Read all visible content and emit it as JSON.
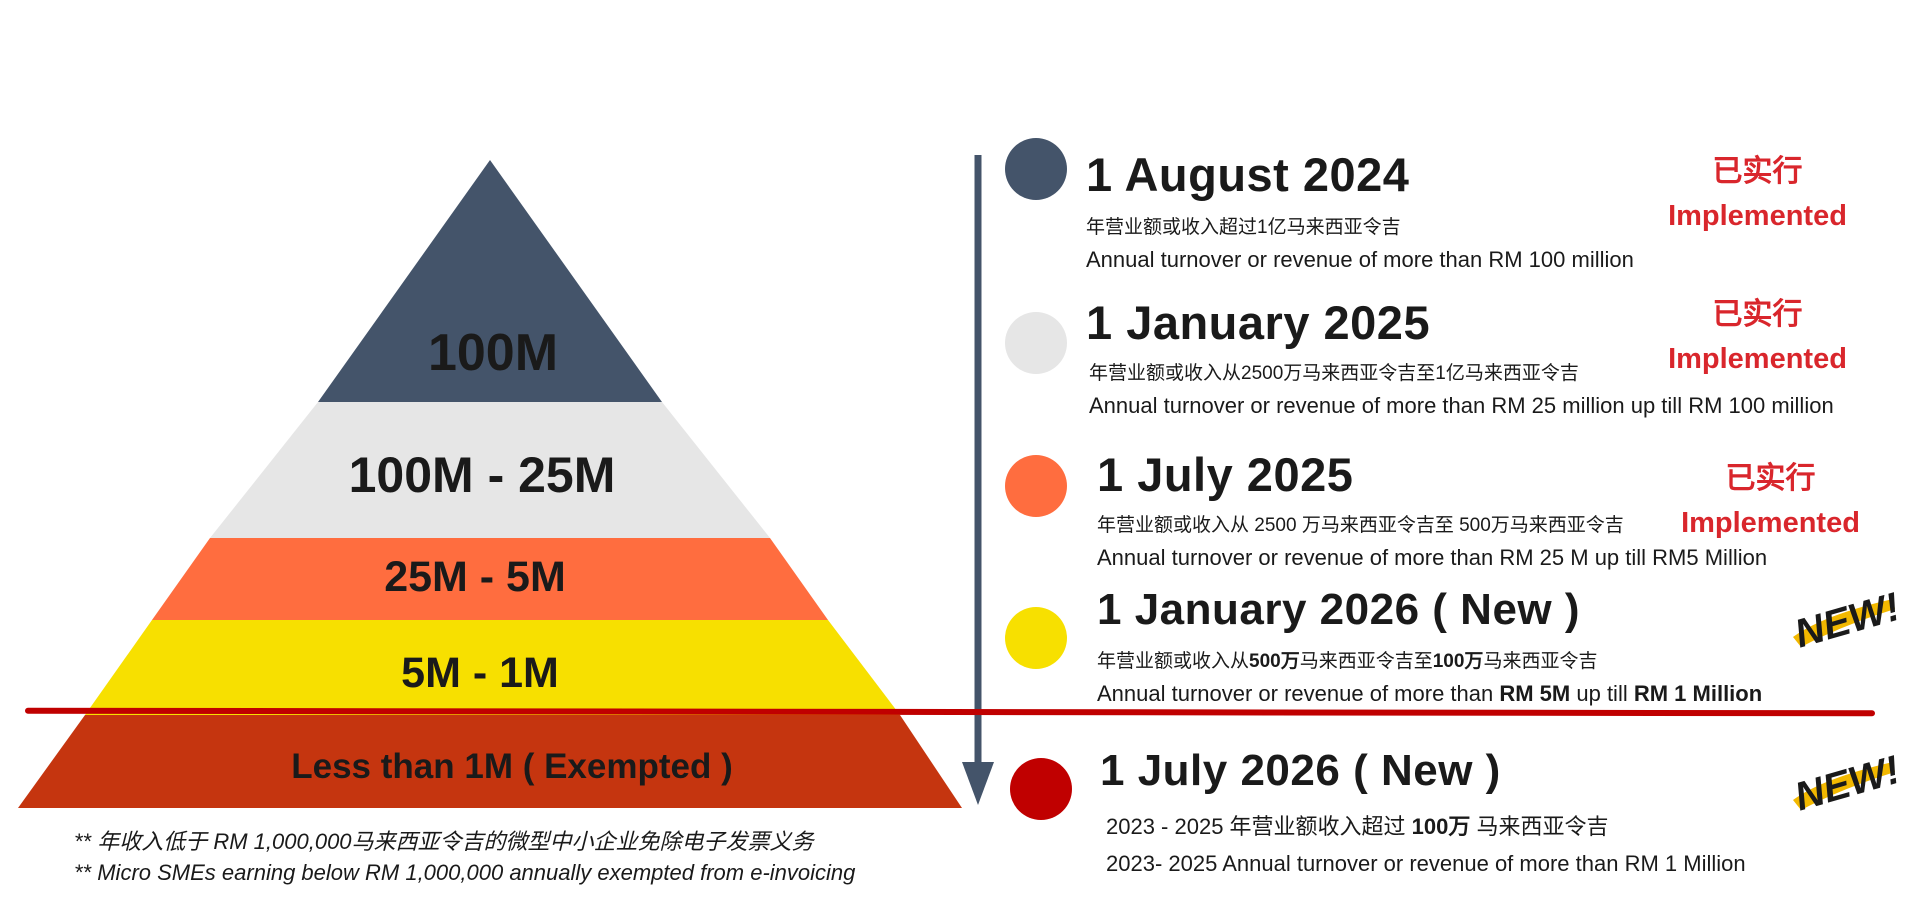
{
  "pyramid": {
    "tiers": [
      {
        "label": "100M",
        "color": "#44546a"
      },
      {
        "label": "100M - 25M",
        "color": "#e6e6e6"
      },
      {
        "label": "25M - 5M",
        "color": "#ff6d3f"
      },
      {
        "label": "5M - 1M",
        "color": "#f7e000"
      },
      {
        "label": "Less than 1M ( Exempted )",
        "color": "#c5350f"
      }
    ]
  },
  "footnotes": {
    "zh": "** 年收入低于 RM 1,000,000马来西亚令吉的微型中小企业免除电子发票义务",
    "en": "** Micro SMEs earning below RM 1,000,000 annually exempted from e-invoicing"
  },
  "timeline": [
    {
      "date": "1 August 2024",
      "zh": "年营业额或收入超过1亿马来西亚令吉",
      "en": "Annual turnover or revenue of more than RM 100 million",
      "status_zh": "已实行",
      "status_en": "Implemented",
      "dot_color": "#44546a"
    },
    {
      "date": "1 January 2025",
      "zh": "年营业额或收入从2500万马来西亚令吉至1亿马来西亚令吉",
      "en": "Annual turnover or revenue of more than RM 25 million up till RM 100 million",
      "status_zh": "已实行",
      "status_en": "Implemented",
      "dot_color": "#e6e6e6"
    },
    {
      "date": "1 July 2025",
      "zh": "年营业额或收入从 2500 万马来西亚令吉至 500万马来西亚令吉",
      "en": "Annual turnover or revenue of more than RM 25 M up till RM5 Million",
      "status_zh": "已实行",
      "status_en": "Implemented",
      "dot_color": "#ff6d3f"
    },
    {
      "date": "1 January 2026 ( New )",
      "zh_parts": [
        "年营业额或收入从",
        "500万",
        "马来西亚令吉至",
        "100万",
        "马来西亚令吉"
      ],
      "en_parts": [
        "Annual turnover or revenue of more than ",
        "RM 5M",
        " up till ",
        "RM 1 Million"
      ],
      "badge": "NEW!",
      "dot_color": "#f7e000"
    },
    {
      "date": "1 July 2026 ( New )",
      "zh_parts": [
        "2023 - 2025 年营业额收入超过 ",
        "100万",
        " 马来西亚令吉"
      ],
      "en": "2023- 2025 Annual turnover or revenue of more than RM 1 Million",
      "badge": "NEW!",
      "dot_color": "#c00000"
    }
  ]
}
